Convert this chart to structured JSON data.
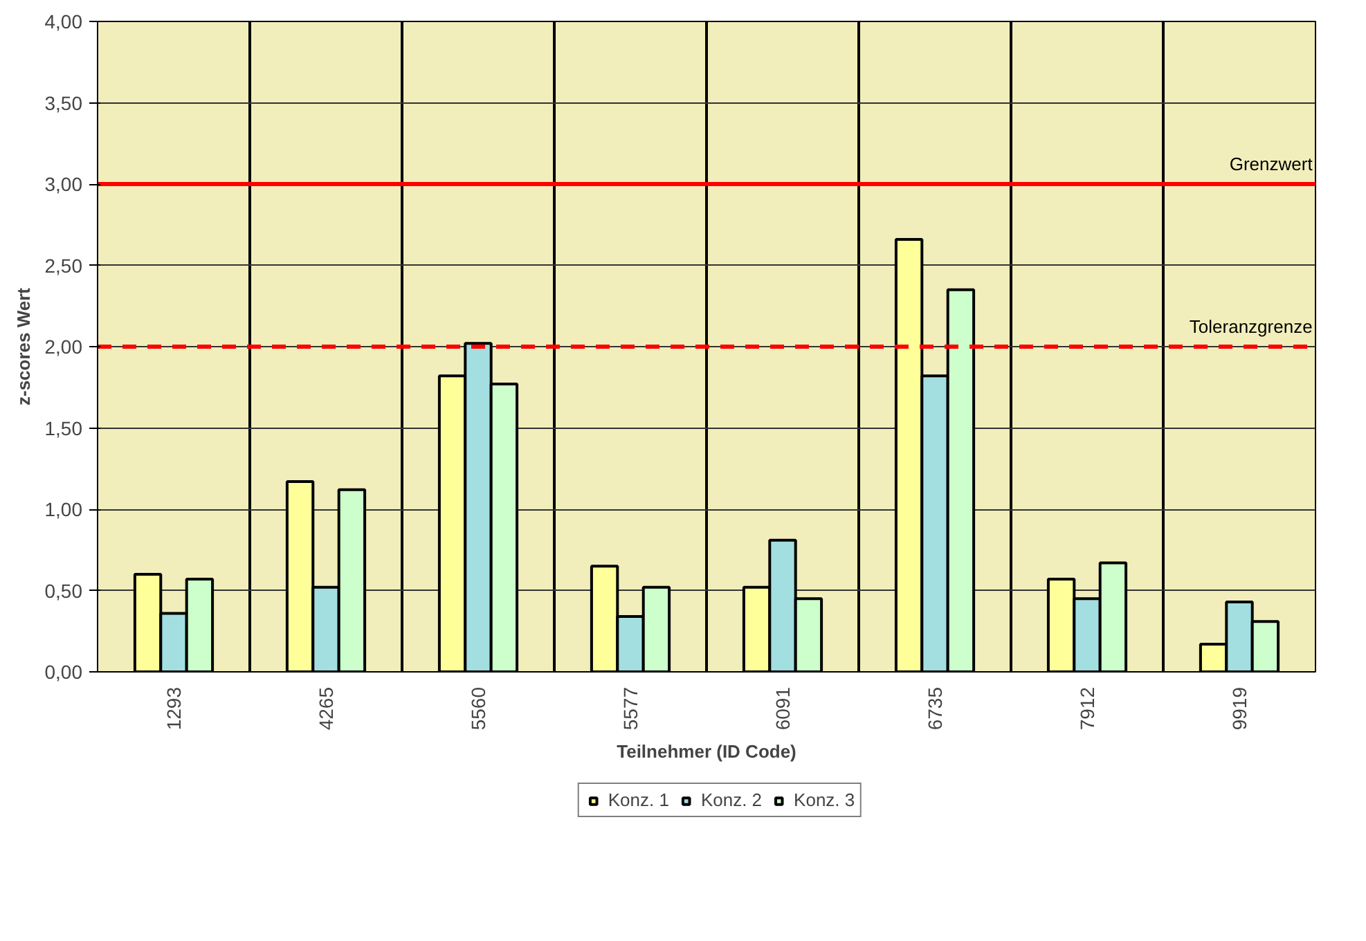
{
  "chart_data": {
    "type": "bar",
    "xlabel": "Teilnehmer (ID Code)",
    "ylabel": "z-scores Wert",
    "categories": [
      "1293",
      "4265",
      "5560",
      "5577",
      "6091",
      "6735",
      "7912",
      "9919"
    ],
    "series": [
      {
        "name": "Konz. 1",
        "color": "#ffff99",
        "values": [
          0.6,
          1.17,
          1.82,
          0.65,
          0.52,
          2.66,
          0.57,
          0.17
        ]
      },
      {
        "name": "Konz. 2",
        "color": "#a3dfe0",
        "values": [
          0.36,
          0.52,
          2.02,
          0.34,
          0.81,
          1.82,
          0.45,
          0.43
        ]
      },
      {
        "name": "Konz. 3",
        "color": "#ccffcc",
        "values": [
          0.57,
          1.12,
          1.77,
          0.52,
          0.45,
          2.35,
          0.67,
          0.31
        ]
      }
    ],
    "ylim": [
      0,
      4
    ],
    "yticks": [
      {
        "value": 0,
        "label": "0,00"
      },
      {
        "value": 0.5,
        "label": "0,50"
      },
      {
        "value": 1,
        "label": "1,00"
      },
      {
        "value": 1.5,
        "label": "1,50"
      },
      {
        "value": 2,
        "label": "2,00"
      },
      {
        "value": 2.5,
        "label": "2,50"
      },
      {
        "value": 3,
        "label": "3,00"
      },
      {
        "value": 3.5,
        "label": "3,50"
      },
      {
        "value": 4,
        "label": "4,00"
      }
    ],
    "ref_lines": [
      {
        "axis": "y",
        "value": 3,
        "label": "Grenzwert",
        "color": "#ff0000",
        "line_style": "solid"
      },
      {
        "axis": "y",
        "value": 2,
        "label": "Toleranzgrenze",
        "color": "#ff0000",
        "line_style": "dashed"
      }
    ],
    "grid": true,
    "legend": "bottom"
  }
}
